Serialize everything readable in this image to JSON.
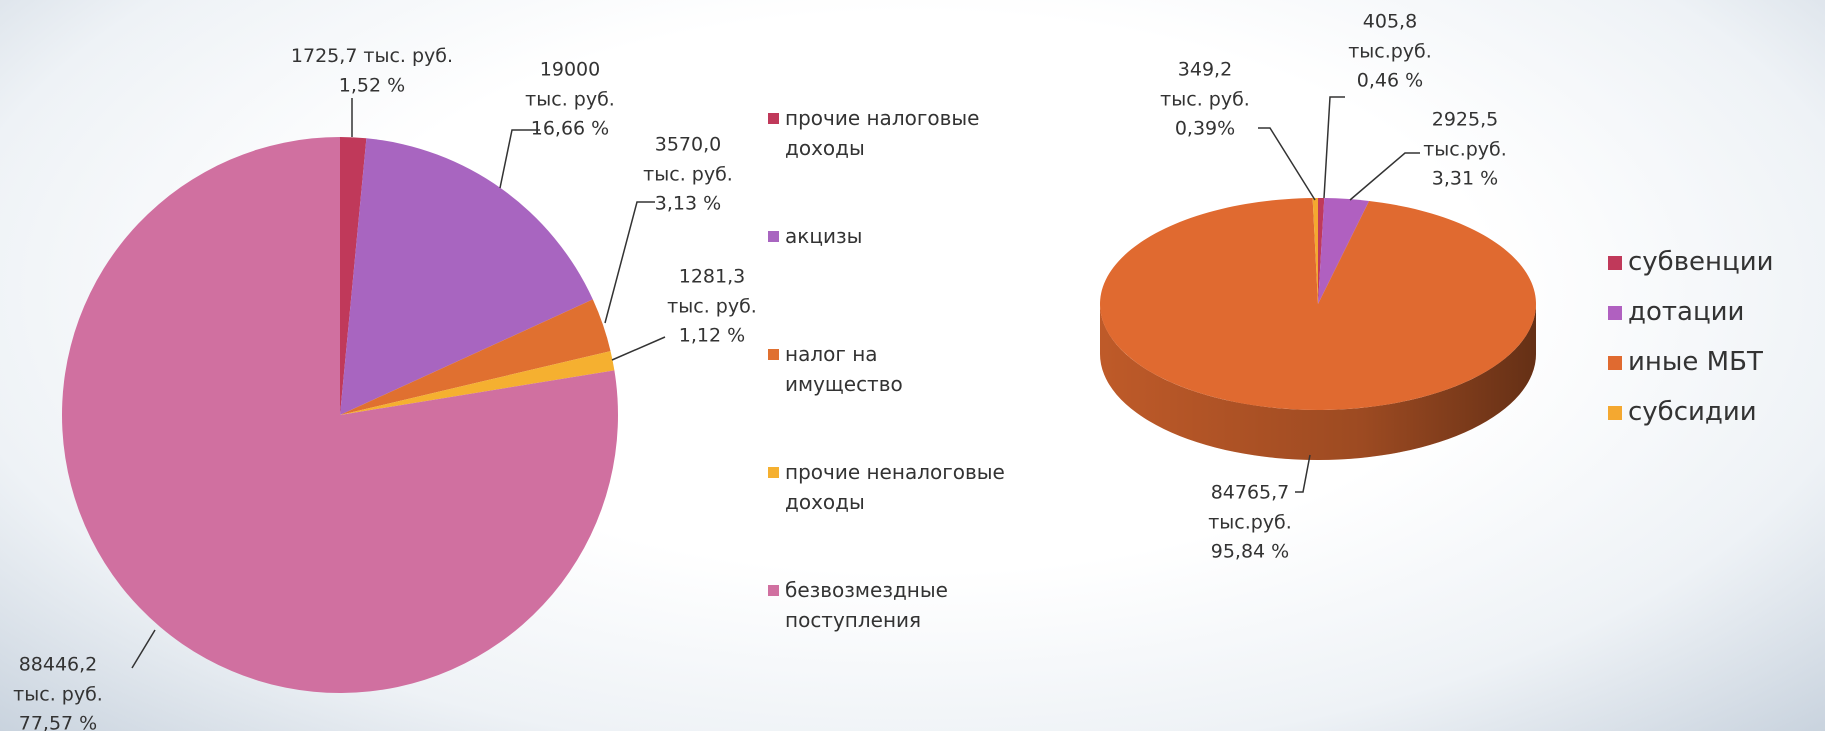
{
  "chart_data": [
    {
      "type": "pie",
      "categories": [
        "прочие налоговые доходы",
        "акцизы",
        "налог на имущество",
        "прочие неналоговые доходы",
        "безвозмездные поступления"
      ],
      "values": [
        1725.7,
        19000,
        3570.0,
        1281.3,
        88446.2
      ],
      "value_labels": [
        "1725,7",
        "19000",
        "3570,0",
        "1281,3",
        "88446,2"
      ],
      "unit_labels": [
        "тыс. руб.",
        "тыс. руб.",
        "тыс. руб.",
        "тыс. руб.",
        "тыс. руб."
      ],
      "percents": [
        1.52,
        16.66,
        3.13,
        1.12,
        77.57
      ],
      "percent_labels": [
        "1,52 %",
        "16,66 %",
        "3,13 %",
        "1,12 %",
        "77,57 %"
      ],
      "colors": [
        "#c0395a",
        "#a865c0",
        "#e07030",
        "#f5b030",
        "#d070a0"
      ]
    },
    {
      "type": "pie3d",
      "categories": [
        "субвенции",
        "дотации",
        "иные МБТ",
        "субсидии"
      ],
      "values": [
        405.8,
        2925.5,
        84765.7,
        349.2
      ],
      "value_labels": [
        "405,8",
        "2925,5",
        "84765,7",
        "349,2"
      ],
      "unit_labels": [
        "тыс.руб.",
        "тыс.руб.",
        "тыс.руб.",
        "тыс. руб."
      ],
      "percents": [
        0.46,
        3.31,
        95.84,
        0.39
      ],
      "percent_labels": [
        "0,46 %",
        "3,31 %",
        "95,84 %",
        "0,39%"
      ],
      "colors": [
        "#c0395a",
        "#b060c0",
        "#e06a30",
        "#f4a830"
      ]
    }
  ]
}
